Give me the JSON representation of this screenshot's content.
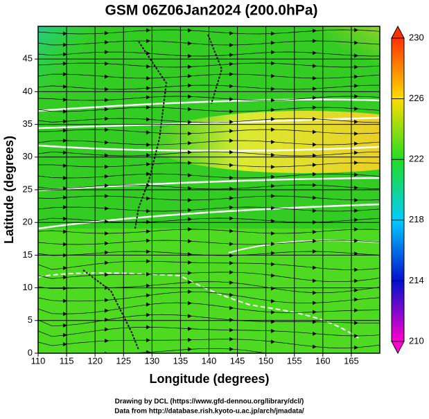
{
  "chart_data": {
    "type": "contour",
    "title": "GSM 06Z06Jan2024 (200.0hPa)",
    "x_label": "Longitude (degrees)",
    "y_label": "Latitude  (degrees)",
    "xlim": [
      110,
      170
    ],
    "xticks": [
      110,
      115,
      120,
      125,
      130,
      135,
      140,
      145,
      150,
      155,
      160,
      165
    ],
    "ylim": [
      0,
      50
    ],
    "yticks": [
      0,
      5,
      10,
      15,
      20,
      25,
      30,
      35,
      40,
      45
    ],
    "grid": true,
    "colorbar": {
      "lim": [
        210,
        230
      ],
      "ticks": [
        210,
        214,
        218,
        222,
        226,
        230
      ],
      "colors": [
        "#ff00cc",
        "#0011cc",
        "#00ccff",
        "#22dd22",
        "#ffdd00",
        "#ff3300"
      ]
    }
  },
  "credits": [
    "Drawing by DCL (https://www.gfd-dennou.org/library/dcl/)",
    "Data from http://database.rish.kyoto-u.ac.jp/arch/jmadata/"
  ]
}
